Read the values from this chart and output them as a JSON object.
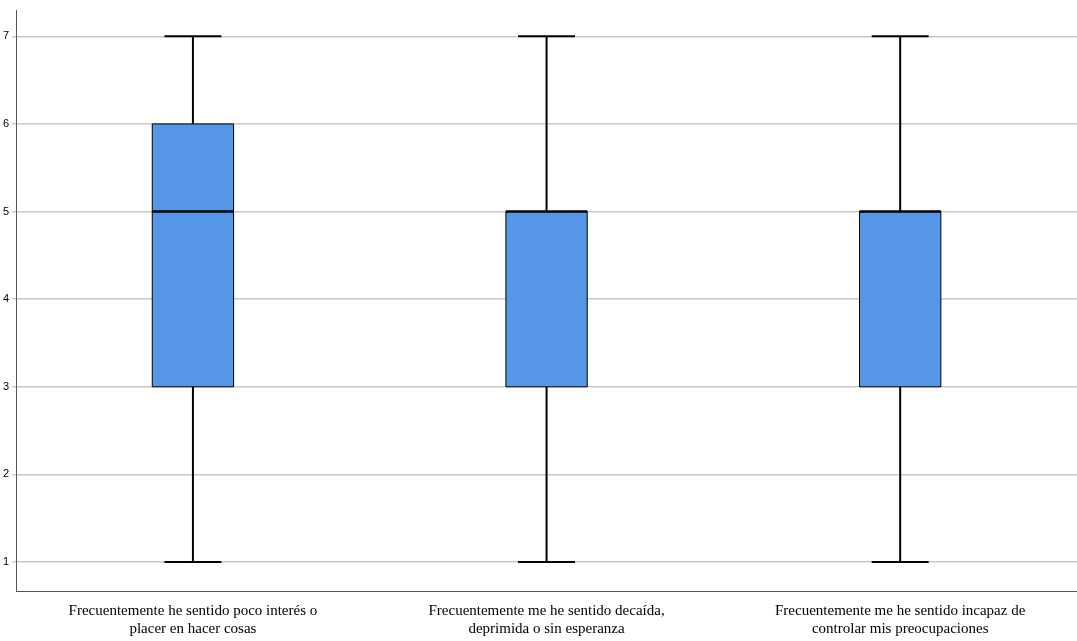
{
  "chart_data": {
    "type": "box",
    "categories": [
      "Frecuentemente he sentido poco interés o placer en hacer cosas",
      "Frecuentemente me he sentido decaída, deprimida o sin esperanza",
      "Frecuentemente me he sentido incapaz de controlar mis preocupaciones"
    ],
    "color": "#5596e6",
    "boxes": [
      {
        "low": 1,
        "q1": 3,
        "median": 5,
        "q3": 6,
        "high": 7
      },
      {
        "low": 1,
        "q1": 3,
        "median": 5,
        "q3": 5,
        "high": 7
      },
      {
        "low": 1,
        "q1": 3,
        "median": 5,
        "q3": 5,
        "high": 7
      }
    ],
    "ylim": [
      0.67,
      7.3
    ],
    "yticks": [
      1,
      2,
      3,
      4,
      5,
      6,
      7
    ],
    "grid": "y",
    "legend": false
  }
}
